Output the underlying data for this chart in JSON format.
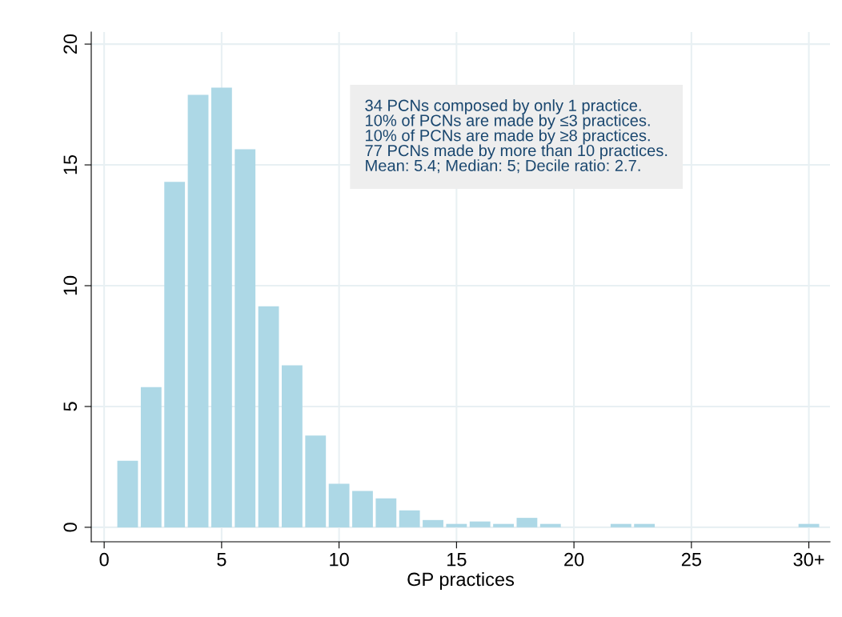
{
  "chart_data": {
    "type": "histogram",
    "xlabel": "GP practices",
    "bins": [
      0.5,
      1.5,
      2.5,
      3.5,
      4.5,
      5.5,
      6.5,
      7.5,
      8.5,
      9.5,
      10.5,
      11.5,
      12.5,
      13.5,
      14.5,
      15.5,
      16.5,
      17.5,
      18.5,
      19.5,
      20.5,
      21.5,
      22.5,
      23.5,
      24.5,
      25.5,
      26.5,
      27.5,
      28.5,
      29.5,
      30.5
    ],
    "values": [
      2.75,
      5.8,
      14.3,
      17.9,
      18.2,
      15.65,
      9.15,
      6.7,
      3.8,
      1.8,
      1.5,
      1.2,
      0.7,
      0.3,
      0.14,
      0.24,
      0.14,
      0.39,
      0.14,
      0,
      0,
      0.14,
      0.14,
      0,
      0,
      0,
      0,
      0,
      0,
      0.14
    ],
    "color": "#add8e6",
    "xlim": [
      -0.55,
      30.9
    ],
    "ylim": [
      -0.6,
      20.5
    ],
    "xticks": [
      0,
      5,
      10,
      15,
      20,
      25,
      {
        "value": 30,
        "label": "30+"
      }
    ],
    "yticks": [
      0,
      5,
      10,
      15,
      20
    ],
    "grid": true,
    "annotations": [
      "34 PCNs composed by only 1 practice.",
      "10% of PCNs are made by ≤3 practices.",
      "10% of PCNs are made by ≥8 practices.",
      "77 PCNs made by more than 10 practices.",
      "Mean: 5.4; Median: 5; Decile ratio: 2.7."
    ]
  }
}
